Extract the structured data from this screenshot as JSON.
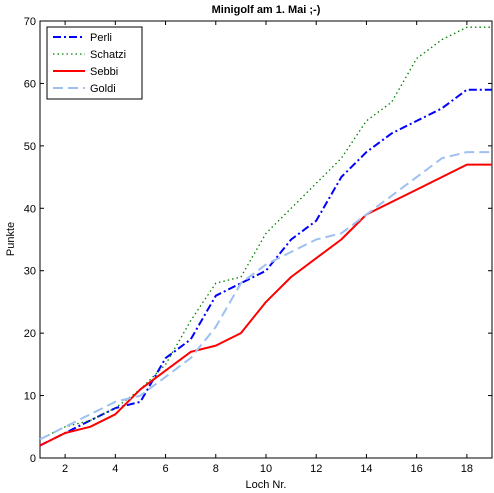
{
  "chart_data": {
    "type": "line",
    "title": "Minigolf am 1. Mai ;-)",
    "xlabel": "Loch Nr.",
    "ylabel": "Punkte",
    "xlim": [
      1,
      19
    ],
    "ylim": [
      0,
      70
    ],
    "xticks": [
      2,
      4,
      6,
      8,
      10,
      12,
      14,
      16,
      18
    ],
    "yticks": [
      0,
      10,
      20,
      30,
      40,
      50,
      60,
      70
    ],
    "grid": false,
    "legend_position": "top-left",
    "x": [
      1,
      2,
      3,
      4,
      5,
      6,
      7,
      8,
      9,
      10,
      11,
      12,
      13,
      14,
      15,
      16,
      17,
      18,
      19
    ],
    "series": [
      {
        "name": "Perli",
        "color": "#0000ff",
        "style": "dashdot",
        "values": [
          2,
          4,
          6,
          8,
          9,
          16,
          19,
          26,
          28,
          30,
          35,
          38,
          45,
          49,
          52,
          54,
          56,
          59,
          59
        ]
      },
      {
        "name": "Schatzi",
        "color": "#008000",
        "style": "dotted",
        "values": [
          3,
          5,
          6,
          8,
          11,
          15,
          22,
          28,
          29,
          36,
          40,
          44,
          48,
          54,
          57,
          64,
          67,
          69,
          69
        ]
      },
      {
        "name": "Sebbi",
        "color": "#ff0000",
        "style": "solid",
        "values": [
          2,
          4,
          5,
          7,
          11,
          14,
          17,
          18,
          20,
          25,
          29,
          32,
          35,
          39,
          41,
          43,
          45,
          47,
          47
        ]
      },
      {
        "name": "Goldi",
        "color": "#9ec0f0",
        "style": "dashed",
        "values": [
          3,
          5,
          7,
          9,
          10,
          13,
          16,
          21,
          28,
          31,
          33,
          35,
          36,
          39,
          42,
          45,
          48,
          49,
          49
        ]
      }
    ]
  }
}
